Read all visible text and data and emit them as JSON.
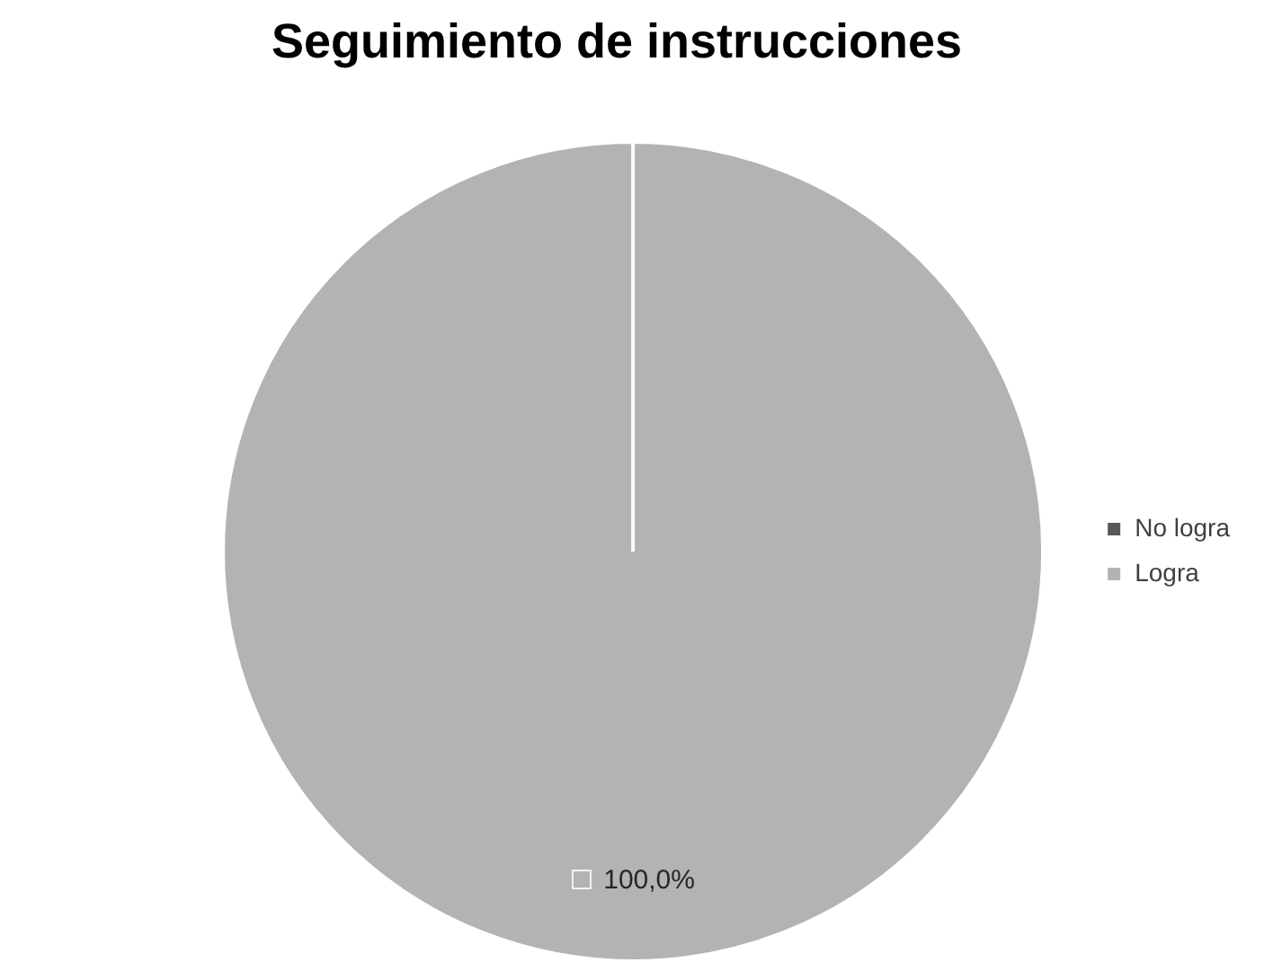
{
  "chart_data": {
    "type": "pie",
    "title": "Seguimiento de instrucciones",
    "categories": [
      "No logra",
      "Logra"
    ],
    "values": [
      0,
      100
    ],
    "colors": [
      "#595959",
      "#b3b3b3"
    ],
    "value_labels": [
      null,
      "100,0%"
    ],
    "legend": "right"
  }
}
